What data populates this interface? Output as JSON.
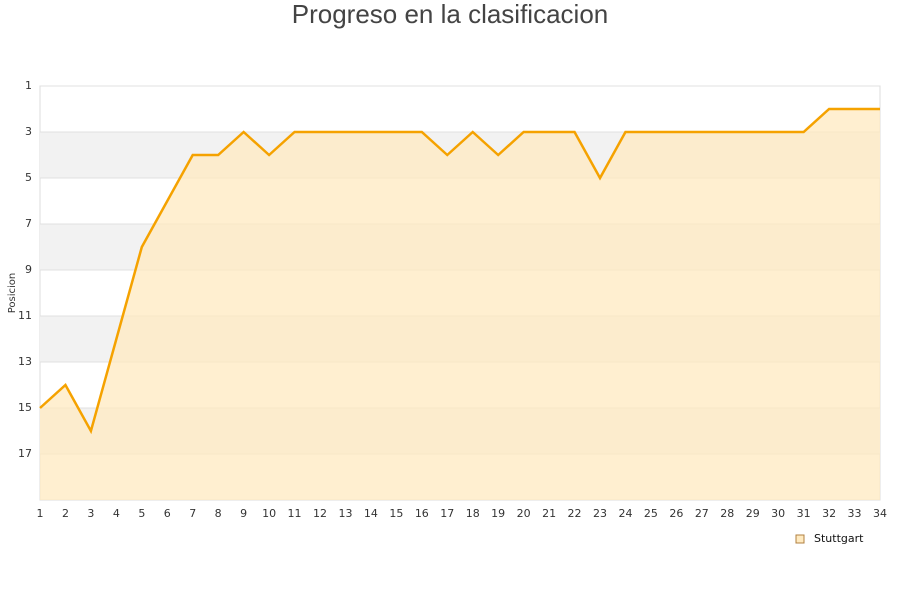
{
  "chart_data": {
    "type": "area",
    "title": "Progreso en la clasificacion",
    "y_label": "Posicion",
    "x": [
      1,
      2,
      3,
      4,
      5,
      6,
      7,
      8,
      9,
      10,
      11,
      12,
      13,
      14,
      15,
      16,
      17,
      18,
      19,
      20,
      21,
      22,
      23,
      24,
      25,
      26,
      27,
      28,
      29,
      30,
      31,
      32,
      33,
      34
    ],
    "series": [
      {
        "name": "Stuttgart",
        "color": "#f5a200",
        "fill": "#ffeac0",
        "values": [
          15,
          14,
          16,
          12,
          8,
          6,
          4,
          4,
          3,
          4,
          3,
          3,
          3,
          3,
          3,
          3,
          4,
          3,
          4,
          3,
          3,
          3,
          5,
          3,
          3,
          3,
          3,
          3,
          3,
          3,
          3,
          2,
          2,
          2
        ]
      }
    ],
    "xlim": [
      1,
      34
    ],
    "xticks": [
      1,
      2,
      3,
      4,
      5,
      6,
      7,
      8,
      9,
      10,
      11,
      12,
      13,
      14,
      15,
      16,
      17,
      18,
      19,
      20,
      21,
      22,
      23,
      24,
      25,
      26,
      27,
      28,
      29,
      30,
      31,
      32,
      33,
      34
    ],
    "ylim": [
      19,
      1
    ],
    "yticks": [
      1,
      3,
      5,
      7,
      9,
      11,
      13,
      15,
      17
    ],
    "y_inverted": true,
    "grid": true,
    "legend": "bottom-right"
  }
}
